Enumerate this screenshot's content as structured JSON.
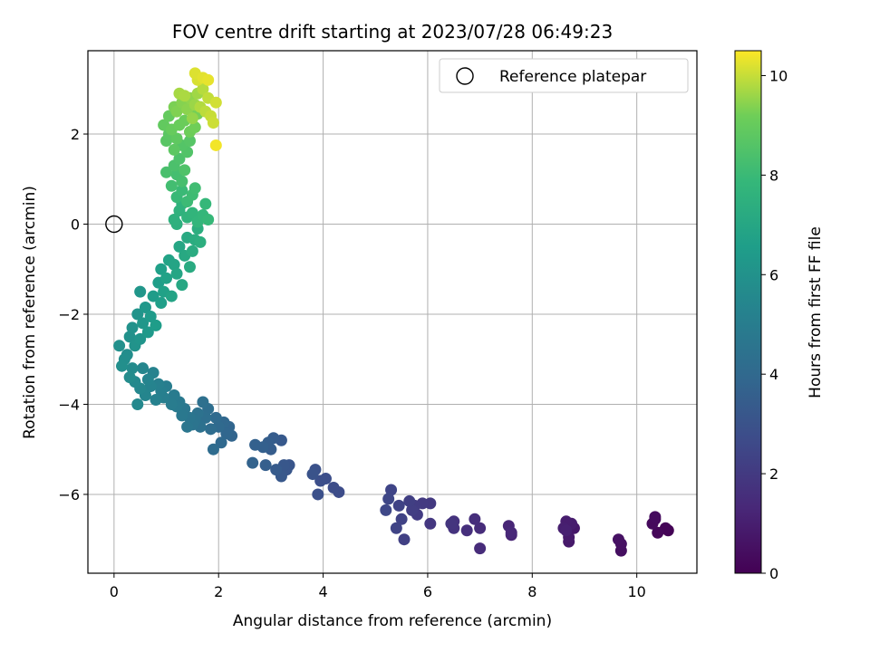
{
  "chart_data": {
    "type": "scatter",
    "title": "FOV centre drift starting at 2023/07/28 06:49:23",
    "xlabel": "Angular distance from reference (arcmin)",
    "ylabel": "Rotation from reference (arcmin)",
    "xlim": [
      -0.5,
      11.15
    ],
    "ylim": [
      -7.75,
      3.85
    ],
    "xticks": [
      "0",
      "2",
      "4",
      "6",
      "8",
      "10"
    ],
    "yticks": [
      "−6",
      "−4",
      "−2",
      "0",
      "2"
    ],
    "grid": true,
    "legend": {
      "placement": "top-right",
      "entries": [
        "Reference platepar"
      ]
    },
    "colorbar": {
      "label": "Hours from first FF file",
      "colormap": "viridis",
      "range": [
        0,
        10.5
      ],
      "ticks": [
        "0",
        "2",
        "4",
        "6",
        "8",
        "10"
      ]
    },
    "reference_point": {
      "x": 0,
      "y": 0
    },
    "series": [
      {
        "name": "Reference platepar",
        "values": [
          [
            0,
            0
          ]
        ]
      }
    ],
    "points": [
      [
        10.6,
        -6.8,
        0.05
      ],
      [
        10.55,
        -6.75,
        0.1
      ],
      [
        10.4,
        -6.85,
        0.2
      ],
      [
        10.35,
        -6.55,
        0.25
      ],
      [
        10.3,
        -6.65,
        0.3
      ],
      [
        10.35,
        -6.5,
        0.35
      ],
      [
        9.7,
        -7.25,
        0.45
      ],
      [
        9.7,
        -7.1,
        0.5
      ],
      [
        9.65,
        -7.0,
        0.55
      ],
      [
        8.8,
        -6.75,
        0.75
      ],
      [
        8.7,
        -7.05,
        0.8
      ],
      [
        8.7,
        -6.95,
        0.85
      ],
      [
        8.75,
        -6.65,
        0.9
      ],
      [
        8.65,
        -6.6,
        0.95
      ],
      [
        8.6,
        -6.75,
        1.0
      ],
      [
        8.65,
        -6.8,
        1.05
      ],
      [
        7.6,
        -6.9,
        1.2
      ],
      [
        7.55,
        -6.7,
        1.25
      ],
      [
        7.6,
        -6.85,
        1.3
      ],
      [
        7.0,
        -7.2,
        1.45
      ],
      [
        7.0,
        -6.75,
        1.5
      ],
      [
        6.9,
        -6.55,
        1.55
      ],
      [
        6.75,
        -6.8,
        1.6
      ],
      [
        6.5,
        -6.6,
        1.7
      ],
      [
        6.5,
        -6.75,
        1.75
      ],
      [
        6.45,
        -6.65,
        1.8
      ],
      [
        6.05,
        -6.65,
        1.9
      ],
      [
        6.05,
        -6.2,
        1.95
      ],
      [
        5.9,
        -6.2,
        2.0
      ],
      [
        5.8,
        -6.45,
        2.05
      ],
      [
        5.75,
        -6.25,
        2.1
      ],
      [
        5.7,
        -6.35,
        2.15
      ],
      [
        5.65,
        -6.15,
        2.2
      ],
      [
        5.55,
        -7.0,
        2.25
      ],
      [
        5.5,
        -6.55,
        2.3
      ],
      [
        5.45,
        -6.25,
        2.35
      ],
      [
        5.4,
        -6.75,
        2.4
      ],
      [
        5.3,
        -5.9,
        2.45
      ],
      [
        5.25,
        -6.1,
        2.5
      ],
      [
        5.2,
        -6.35,
        2.55
      ],
      [
        4.3,
        -5.95,
        2.7
      ],
      [
        4.2,
        -5.85,
        2.75
      ],
      [
        4.05,
        -5.65,
        2.8
      ],
      [
        3.95,
        -5.7,
        2.85
      ],
      [
        3.9,
        -6.0,
        2.9
      ],
      [
        3.85,
        -5.45,
        2.95
      ],
      [
        3.8,
        -5.55,
        3.0
      ],
      [
        3.35,
        -5.35,
        3.1
      ],
      [
        3.3,
        -5.45,
        3.15
      ],
      [
        3.25,
        -5.35,
        3.2
      ],
      [
        3.2,
        -5.6,
        3.25
      ],
      [
        3.2,
        -4.8,
        3.3
      ],
      [
        3.1,
        -5.45,
        3.35
      ],
      [
        3.05,
        -4.75,
        3.4
      ],
      [
        3.0,
        -5.0,
        3.45
      ],
      [
        2.95,
        -4.85,
        3.5
      ],
      [
        2.9,
        -5.35,
        3.55
      ],
      [
        2.85,
        -4.95,
        3.6
      ],
      [
        2.7,
        -4.9,
        3.65
      ],
      [
        2.65,
        -5.3,
        3.7
      ],
      [
        2.25,
        -4.7,
        3.8
      ],
      [
        2.2,
        -4.5,
        3.85
      ],
      [
        2.15,
        -4.65,
        3.9
      ],
      [
        2.1,
        -4.4,
        3.95
      ],
      [
        2.05,
        -4.85,
        4.0
      ],
      [
        2.0,
        -4.5,
        4.05
      ],
      [
        1.95,
        -4.3,
        4.1
      ],
      [
        1.9,
        -5.0,
        4.15
      ],
      [
        1.85,
        -4.55,
        4.2
      ],
      [
        1.8,
        -4.1,
        4.25
      ],
      [
        1.75,
        -4.3,
        4.3
      ],
      [
        1.7,
        -3.95,
        4.35
      ],
      [
        1.65,
        -4.5,
        4.4
      ],
      [
        1.6,
        -4.2,
        4.45
      ],
      [
        1.55,
        -4.35,
        4.5
      ],
      [
        1.5,
        -4.45,
        4.55
      ],
      [
        1.45,
        -4.3,
        4.6
      ],
      [
        1.4,
        -4.5,
        4.65
      ],
      [
        1.35,
        -4.1,
        4.7
      ],
      [
        1.3,
        -4.25,
        4.75
      ],
      [
        1.25,
        -3.95,
        4.8
      ],
      [
        1.2,
        -4.05,
        4.85
      ],
      [
        1.15,
        -3.8,
        4.9
      ],
      [
        1.1,
        -4.0,
        4.95
      ],
      [
        1.0,
        -3.6,
        5.0
      ],
      [
        0.95,
        -3.85,
        5.05
      ],
      [
        0.9,
        -3.7,
        5.1
      ],
      [
        0.85,
        -3.55,
        5.15
      ],
      [
        0.8,
        -3.9,
        5.2
      ],
      [
        0.75,
        -3.3,
        5.25
      ],
      [
        0.7,
        -3.6,
        5.3
      ],
      [
        0.65,
        -3.45,
        5.35
      ],
      [
        0.6,
        -3.8,
        5.4
      ],
      [
        0.55,
        -3.2,
        5.45
      ],
      [
        0.5,
        -3.65,
        5.5
      ],
      [
        0.45,
        -4.0,
        5.55
      ],
      [
        0.4,
        -3.5,
        5.6
      ],
      [
        0.35,
        -3.2,
        5.65
      ],
      [
        0.3,
        -3.4,
        5.7
      ],
      [
        0.25,
        -2.9,
        5.75
      ],
      [
        0.2,
        -3.0,
        5.8
      ],
      [
        0.15,
        -3.15,
        5.85
      ],
      [
        0.1,
        -2.7,
        5.9
      ],
      [
        0.3,
        -2.5,
        5.95
      ],
      [
        0.35,
        -2.3,
        6.0
      ],
      [
        0.4,
        -2.7,
        6.05
      ],
      [
        0.45,
        -2.0,
        6.1
      ],
      [
        0.5,
        -2.55,
        6.15
      ],
      [
        0.5,
        -1.5,
        6.2
      ],
      [
        0.55,
        -2.2,
        6.25
      ],
      [
        0.6,
        -1.85,
        6.3
      ],
      [
        0.65,
        -2.4,
        6.35
      ],
      [
        0.7,
        -2.05,
        6.4
      ],
      [
        0.75,
        -1.6,
        6.45
      ],
      [
        0.8,
        -2.25,
        6.5
      ],
      [
        0.85,
        -1.3,
        6.55
      ],
      [
        0.9,
        -1.75,
        6.6
      ],
      [
        0.9,
        -1.0,
        6.65
      ],
      [
        0.95,
        -1.5,
        6.7
      ],
      [
        1.0,
        -1.2,
        6.75
      ],
      [
        1.05,
        -0.8,
        6.8
      ],
      [
        1.1,
        -1.6,
        6.85
      ],
      [
        1.15,
        -0.9,
        6.9
      ],
      [
        1.2,
        -1.1,
        6.95
      ],
      [
        1.25,
        -0.5,
        7.0
      ],
      [
        1.3,
        -1.35,
        7.05
      ],
      [
        1.35,
        -0.7,
        7.1
      ],
      [
        1.4,
        -0.3,
        7.15
      ],
      [
        1.45,
        -0.95,
        7.2
      ],
      [
        1.5,
        -0.6,
        7.25
      ],
      [
        1.55,
        -0.35,
        7.3
      ],
      [
        1.6,
        -0.1,
        7.35
      ],
      [
        1.65,
        -0.4,
        7.4
      ],
      [
        1.2,
        0.0,
        7.45
      ],
      [
        1.15,
        0.1,
        7.5
      ],
      [
        1.25,
        0.3,
        7.55
      ],
      [
        1.3,
        0.45,
        7.6
      ],
      [
        1.4,
        0.15,
        7.65
      ],
      [
        1.5,
        0.25,
        7.7
      ],
      [
        1.6,
        0.05,
        7.75
      ],
      [
        1.7,
        0.2,
        7.8
      ],
      [
        1.75,
        0.45,
        7.85
      ],
      [
        1.8,
        0.1,
        7.9
      ],
      [
        1.2,
        0.6,
        7.95
      ],
      [
        1.3,
        0.75,
        8.0
      ],
      [
        1.4,
        0.5,
        8.05
      ],
      [
        1.5,
        0.65,
        8.1
      ],
      [
        1.55,
        0.8,
        8.15
      ],
      [
        1.1,
        0.85,
        8.2
      ],
      [
        1.2,
        1.1,
        8.25
      ],
      [
        1.3,
        0.95,
        8.3
      ],
      [
        1.0,
        1.15,
        8.35
      ],
      [
        1.15,
        1.3,
        8.4
      ],
      [
        1.25,
        1.45,
        8.45
      ],
      [
        1.35,
        1.2,
        8.5
      ],
      [
        1.4,
        1.6,
        8.55
      ],
      [
        1.3,
        1.75,
        8.6
      ],
      [
        1.45,
        1.85,
        8.65
      ],
      [
        1.0,
        1.85,
        8.7
      ],
      [
        1.05,
        2.0,
        8.75
      ],
      [
        1.15,
        1.65,
        8.8
      ],
      [
        1.2,
        1.9,
        8.85
      ],
      [
        0.95,
        2.2,
        8.9
      ],
      [
        1.05,
        2.4,
        8.95
      ],
      [
        1.1,
        2.1,
        9.0
      ],
      [
        1.25,
        2.2,
        9.05
      ],
      [
        1.35,
        2.3,
        9.1
      ],
      [
        1.45,
        2.05,
        9.15
      ],
      [
        1.55,
        2.15,
        9.2
      ],
      [
        1.6,
        2.45,
        9.25
      ],
      [
        1.15,
        2.6,
        9.3
      ],
      [
        1.2,
        2.5,
        9.35
      ],
      [
        1.3,
        2.7,
        9.4
      ],
      [
        1.4,
        2.55,
        9.45
      ],
      [
        1.45,
        2.8,
        9.5
      ],
      [
        1.5,
        2.35,
        9.55
      ],
      [
        1.55,
        2.65,
        9.6
      ],
      [
        1.6,
        2.9,
        9.65
      ],
      [
        1.25,
        2.9,
        9.7
      ],
      [
        1.35,
        2.85,
        9.75
      ],
      [
        1.65,
        2.6,
        9.8
      ],
      [
        1.7,
        3.0,
        9.85
      ],
      [
        1.75,
        2.5,
        9.9
      ],
      [
        1.8,
        2.8,
        9.95
      ],
      [
        1.85,
        2.4,
        10.0
      ],
      [
        1.9,
        2.25,
        10.05
      ],
      [
        1.95,
        2.7,
        10.1
      ],
      [
        1.6,
        3.2,
        10.15
      ],
      [
        1.55,
        3.35,
        10.2
      ],
      [
        1.7,
        3.25,
        10.25
      ],
      [
        1.8,
        3.2,
        10.3
      ],
      [
        1.95,
        1.75,
        10.4
      ]
    ]
  }
}
